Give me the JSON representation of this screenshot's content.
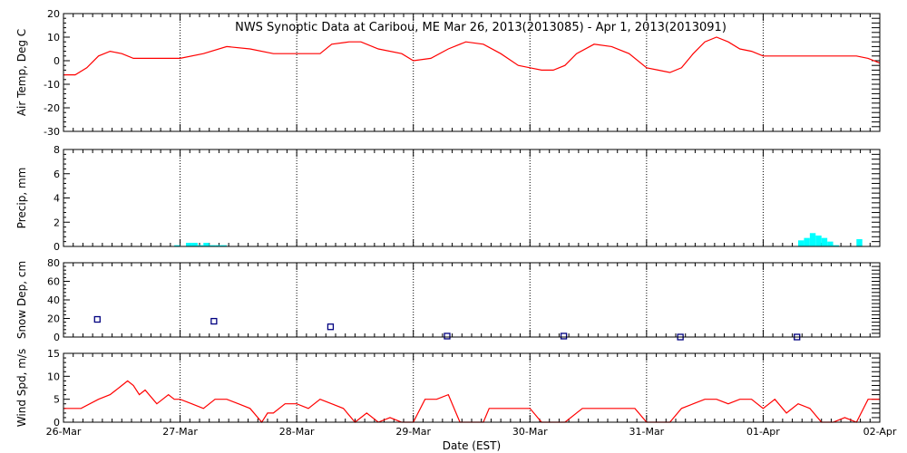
{
  "title": "NWS Synoptic Data at Caribou, ME   Mar 26, 2013(2013085) - Apr  1, 2013(2013091)",
  "xlabel": "Date (EST)",
  "x_ticks": [
    "26-Mar",
    "27-Mar",
    "28-Mar",
    "29-Mar",
    "30-Mar",
    "31-Mar",
    "01-Apr",
    "02-Apr"
  ],
  "colors": {
    "temp_line": "#ff0000",
    "precip_bar": "#00ffff",
    "snow_marker": "#000080",
    "wind_line": "#ff0000",
    "axis": "#000000"
  },
  "chart_data": [
    {
      "type": "line",
      "ylabel": "Air Temp, Deg C",
      "ylim": [
        -30,
        20
      ],
      "yticks": [
        -30,
        -20,
        -10,
        0,
        10,
        20
      ],
      "x_unit": "days since 26-Mar 00:00 EST",
      "series": [
        {
          "name": "",
          "x": [
            0,
            0.1,
            0.2,
            0.3,
            0.4,
            0.5,
            0.6,
            0.8,
            1.0,
            1.2,
            1.4,
            1.6,
            1.8,
            2.0,
            2.2,
            2.3,
            2.45,
            2.55,
            2.7,
            2.9,
            3.0,
            3.15,
            3.3,
            3.45,
            3.6,
            3.75,
            3.9,
            4.0,
            4.1,
            4.2,
            4.3,
            4.4,
            4.55,
            4.7,
            4.85,
            5.0,
            5.1,
            5.2,
            5.3,
            5.4,
            5.5,
            5.6,
            5.7,
            5.8,
            5.9,
            6.0,
            6.2,
            6.4,
            6.6,
            6.8,
            6.9,
            7.0
          ],
          "y": [
            -6,
            -6,
            -3,
            2,
            4,
            3,
            1,
            1,
            1,
            3,
            6,
            5,
            3,
            3,
            3,
            7,
            8,
            8,
            5,
            3,
            0,
            1,
            5,
            8,
            7,
            3,
            -2,
            -3,
            -4,
            -4,
            -2,
            3,
            7,
            6,
            3,
            -3,
            -4,
            -5,
            -3,
            3,
            8,
            10,
            8,
            5,
            4,
            2,
            2,
            2,
            2,
            2,
            1,
            -1
          ]
        }
      ]
    },
    {
      "type": "bar",
      "ylabel": "Precip, mm",
      "ylim": [
        0,
        8
      ],
      "yticks": [
        0,
        2,
        4,
        6,
        8
      ],
      "x_unit": "days since 26-Mar 00:00 EST",
      "bar_width_days": 0.05,
      "series": [
        {
          "name": "",
          "x": [
            0.95,
            1.05,
            1.1,
            1.15,
            1.2,
            1.25,
            1.3,
            1.35,
            6.3,
            6.35,
            6.4,
            6.45,
            6.5,
            6.55,
            6.6,
            6.8
          ],
          "y": [
            0.1,
            0.3,
            0.3,
            0.1,
            0.3,
            0.1,
            0.1,
            0.1,
            0.5,
            0.7,
            1.1,
            0.9,
            0.7,
            0.4,
            0.1,
            0.6
          ]
        }
      ]
    },
    {
      "type": "scatter",
      "ylabel": "Snow Dep, cm",
      "ylim": [
        0,
        80
      ],
      "yticks": [
        0,
        20,
        40,
        60,
        80
      ],
      "x_unit": "days since 26-Mar 00:00 EST",
      "series": [
        {
          "name": "",
          "x": [
            0.29,
            1.29,
            2.29,
            3.29,
            4.29,
            5.29,
            6.29
          ],
          "y": [
            19,
            17,
            11,
            1,
            1,
            0,
            0
          ]
        }
      ]
    },
    {
      "type": "line",
      "ylabel": "Wind Spd, m/s",
      "ylim": [
        0,
        15
      ],
      "yticks": [
        0,
        5,
        10,
        15
      ],
      "x_unit": "days since 26-Mar 00:00 EST",
      "series": [
        {
          "name": "",
          "x": [
            0,
            0.15,
            0.3,
            0.4,
            0.5,
            0.55,
            0.6,
            0.65,
            0.7,
            0.8,
            0.85,
            0.9,
            0.95,
            1.0,
            1.1,
            1.2,
            1.3,
            1.4,
            1.5,
            1.6,
            1.7,
            1.75,
            1.8,
            1.9,
            2.0,
            2.1,
            2.2,
            2.3,
            2.4,
            2.5,
            2.6,
            2.7,
            2.8,
            2.9,
            3.0,
            3.1,
            3.2,
            3.3,
            3.4,
            3.5,
            3.6,
            3.65,
            3.7,
            3.8,
            3.9,
            4.0,
            4.1,
            4.2,
            4.3,
            4.45,
            4.5,
            4.7,
            4.9,
            5.0,
            5.05,
            5.1,
            5.2,
            5.3,
            5.4,
            5.5,
            5.6,
            5.7,
            5.8,
            5.9,
            6.0,
            6.1,
            6.2,
            6.3,
            6.4,
            6.5,
            6.6,
            6.7,
            6.8,
            6.9,
            7.0
          ],
          "y": [
            3,
            3,
            5,
            6,
            8,
            9,
            8,
            6,
            7,
            4,
            5,
            6,
            5,
            5,
            4,
            3,
            5,
            5,
            4,
            3,
            0,
            2,
            2,
            4,
            4,
            3,
            5,
            4,
            3,
            0,
            2,
            0,
            1,
            0,
            0,
            5,
            5,
            6,
            0,
            0,
            0,
            3,
            3,
            3,
            3,
            3,
            0,
            0,
            0,
            3,
            3,
            3,
            3,
            0,
            0,
            0,
            0,
            3,
            4,
            5,
            5,
            4,
            5,
            5,
            3,
            5,
            2,
            4,
            3,
            0,
            0,
            1,
            0,
            5,
            5
          ]
        }
      ]
    }
  ]
}
